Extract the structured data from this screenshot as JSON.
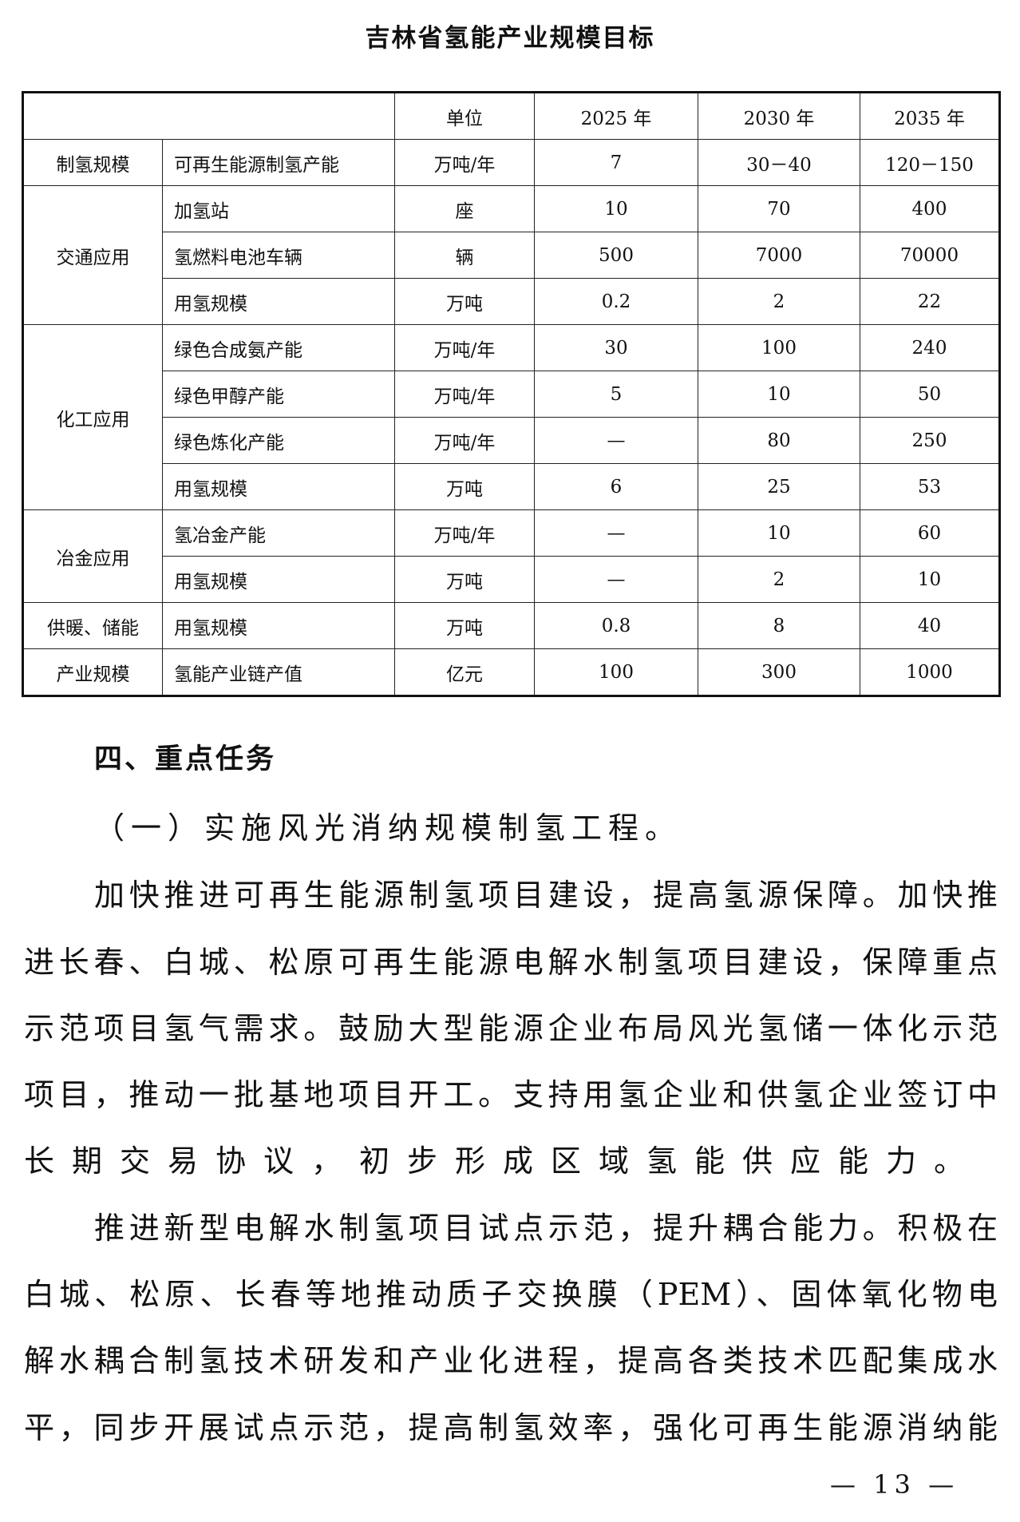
{
  "title": "吉林省氢能产业规模目标",
  "table": {
    "headers": [
      "",
      "单位",
      "2025 年",
      "2030 年",
      "2035 年"
    ],
    "groups": [
      {
        "category": "制氢规模",
        "rows": [
          [
            "可再生能源制氢产能",
            "万吨/年",
            "7",
            "30－40",
            "120－150"
          ]
        ]
      },
      {
        "category": "交通应用",
        "rows": [
          [
            "加氢站",
            "座",
            "10",
            "70",
            "400"
          ],
          [
            "氢燃料电池车辆",
            "辆",
            "500",
            "7000",
            "70000"
          ],
          [
            "用氢规模",
            "万吨",
            "0.2",
            "2",
            "22"
          ]
        ]
      },
      {
        "category": "化工应用",
        "rows": [
          [
            "绿色合成氨产能",
            "万吨/年",
            "30",
            "100",
            "240"
          ],
          [
            "绿色甲醇产能",
            "万吨/年",
            "5",
            "10",
            "50"
          ],
          [
            "绿色炼化产能",
            "万吨/年",
            "—",
            "80",
            "250"
          ],
          [
            "用氢规模",
            "万吨",
            "6",
            "25",
            "53"
          ]
        ]
      },
      {
        "category": "冶金应用",
        "rows": [
          [
            "氢冶金产能",
            "万吨/年",
            "—",
            "10",
            "60"
          ],
          [
            "用氢规模",
            "万吨",
            "—",
            "2",
            "10"
          ]
        ]
      },
      {
        "category": "供暖、储能",
        "rows": [
          [
            "用氢规模",
            "万吨",
            "0.8",
            "8",
            "40"
          ]
        ]
      },
      {
        "category": "产业规模",
        "rows": [
          [
            "氢能产业链产值",
            "亿元",
            "100",
            "300",
            "1000"
          ]
        ]
      }
    ]
  },
  "section_heading": "四、重点任务",
  "subsection_heading": "（一）实施风光消纳规模制氢工程。",
  "paragraphs": [
    [
      "加快推进可再生能源制氢项目建设，提高氢源保障。加快推",
      "进长春、白城、松原可再生能源电解水制氢项目建设，保障重点",
      "示范项目氢气需求。鼓励大型能源企业布局风光氢储一体化示范",
      "项目，推动一批基地项目开工。支持用氢企业和供氢企业签订中",
      "长期交易协议，初步形成区域氢能供应能力。"
    ],
    [
      "推进新型电解水制氢项目试点示范，提升耦合能力。积极在",
      "白城、松原、长春等地推动质子交换膜（PEM）、固体氧化物电",
      "解水耦合制氢技术研发和产业化进程，提高各类技术匹配集成水",
      "平，同步开展试点示范，提高制氢效率，强化可再生能源消纳能"
    ]
  ],
  "page_number": "— 13 —"
}
